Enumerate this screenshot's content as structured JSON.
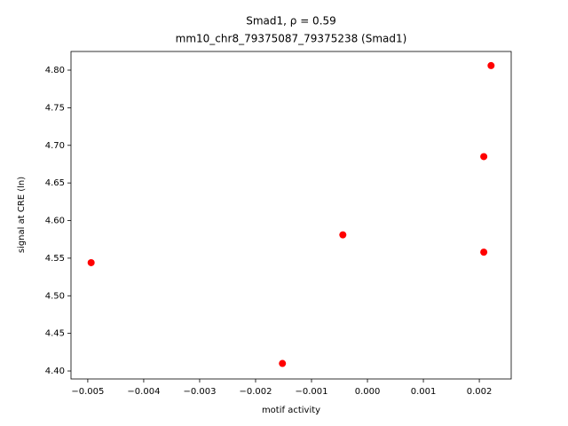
{
  "chart_data": {
    "type": "scatter",
    "title": "Smad1, ρ = 0.59",
    "subtitle": "mm10_chr8_79375087_79375238 (Smad1)",
    "x_label": "motif activity",
    "y_label": "signal at CRE (ln)",
    "color": "#ff0000",
    "x": [
      0.00221,
      0.00208,
      0.00208,
      -0.00044,
      -0.00494,
      -0.00152
    ],
    "values": [
      4.806,
      4.685,
      4.558,
      4.581,
      4.544,
      4.41
    ],
    "xlim": [
      -0.0053,
      0.00257
    ],
    "ylim": [
      4.3894,
      4.8248
    ],
    "xticks": [
      {
        "value": -0.005,
        "label": "−0.005"
      },
      {
        "value": -0.004,
        "label": "−0.004"
      },
      {
        "value": -0.003,
        "label": "−0.003"
      },
      {
        "value": -0.002,
        "label": "−0.002"
      },
      {
        "value": -0.001,
        "label": "−0.001"
      },
      {
        "value": 0,
        "label": "0.000"
      },
      {
        "value": 0.001,
        "label": "0.001"
      },
      {
        "value": 0.002,
        "label": "0.002"
      }
    ],
    "yticks": [
      {
        "value": 4.4,
        "label": "4.40"
      },
      {
        "value": 4.45,
        "label": "4.45"
      },
      {
        "value": 4.5,
        "label": "4.50"
      },
      {
        "value": 4.55,
        "label": "4.55"
      },
      {
        "value": 4.6,
        "label": "4.60"
      },
      {
        "value": 4.65,
        "label": "4.65"
      },
      {
        "value": 4.7,
        "label": "4.70"
      },
      {
        "value": 4.75,
        "label": "4.75"
      },
      {
        "value": 4.8,
        "label": "4.80"
      }
    ],
    "grid": false
  }
}
